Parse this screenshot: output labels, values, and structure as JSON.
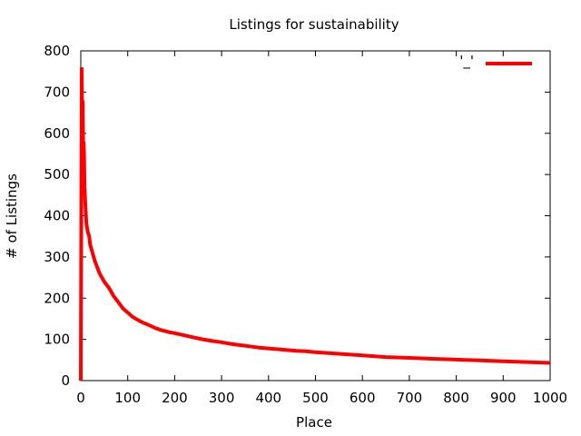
{
  "chart_data": {
    "type": "line",
    "title": "Listings for sustainability",
    "xlabel": "Place",
    "ylabel": "# of Listings",
    "xlim": [
      0,
      1000
    ],
    "ylim": [
      0,
      800
    ],
    "x_ticks": [
      0,
      100,
      200,
      300,
      400,
      500,
      600,
      700,
      800,
      900,
      1000
    ],
    "y_ticks": [
      0,
      100,
      200,
      300,
      400,
      500,
      600,
      700,
      800
    ],
    "grid": false,
    "legend": {
      "position": "top-right",
      "entries": [
        {
          "label": "'_'",
          "color": "#ff0000"
        }
      ]
    },
    "series": [
      {
        "color": "#ff0000",
        "x": [
          0,
          1,
          2,
          3,
          4,
          5,
          6,
          7,
          8,
          10,
          12,
          15,
          18,
          20,
          25,
          30,
          35,
          40,
          45,
          50,
          60,
          70,
          80,
          90,
          100,
          110,
          120,
          130,
          140,
          150,
          160,
          170,
          180,
          190,
          200,
          220,
          240,
          260,
          280,
          300,
          320,
          340,
          360,
          380,
          400,
          420,
          440,
          460,
          480,
          500,
          550,
          600,
          650,
          700,
          750,
          800,
          850,
          900,
          950,
          1000
        ],
        "y": [
          0,
          380,
          760,
          600,
          680,
          560,
          580,
          550,
          470,
          420,
          380,
          360,
          350,
          330,
          310,
          290,
          275,
          260,
          250,
          240,
          225,
          205,
          190,
          175,
          165,
          155,
          148,
          142,
          137,
          132,
          127,
          123,
          120,
          117,
          115,
          110,
          105,
          100,
          96,
          93,
          89,
          86,
          83,
          80,
          78,
          76,
          74,
          72,
          71,
          69,
          65,
          61,
          57,
          55,
          53,
          51,
          49,
          47,
          45,
          43
        ]
      }
    ]
  }
}
